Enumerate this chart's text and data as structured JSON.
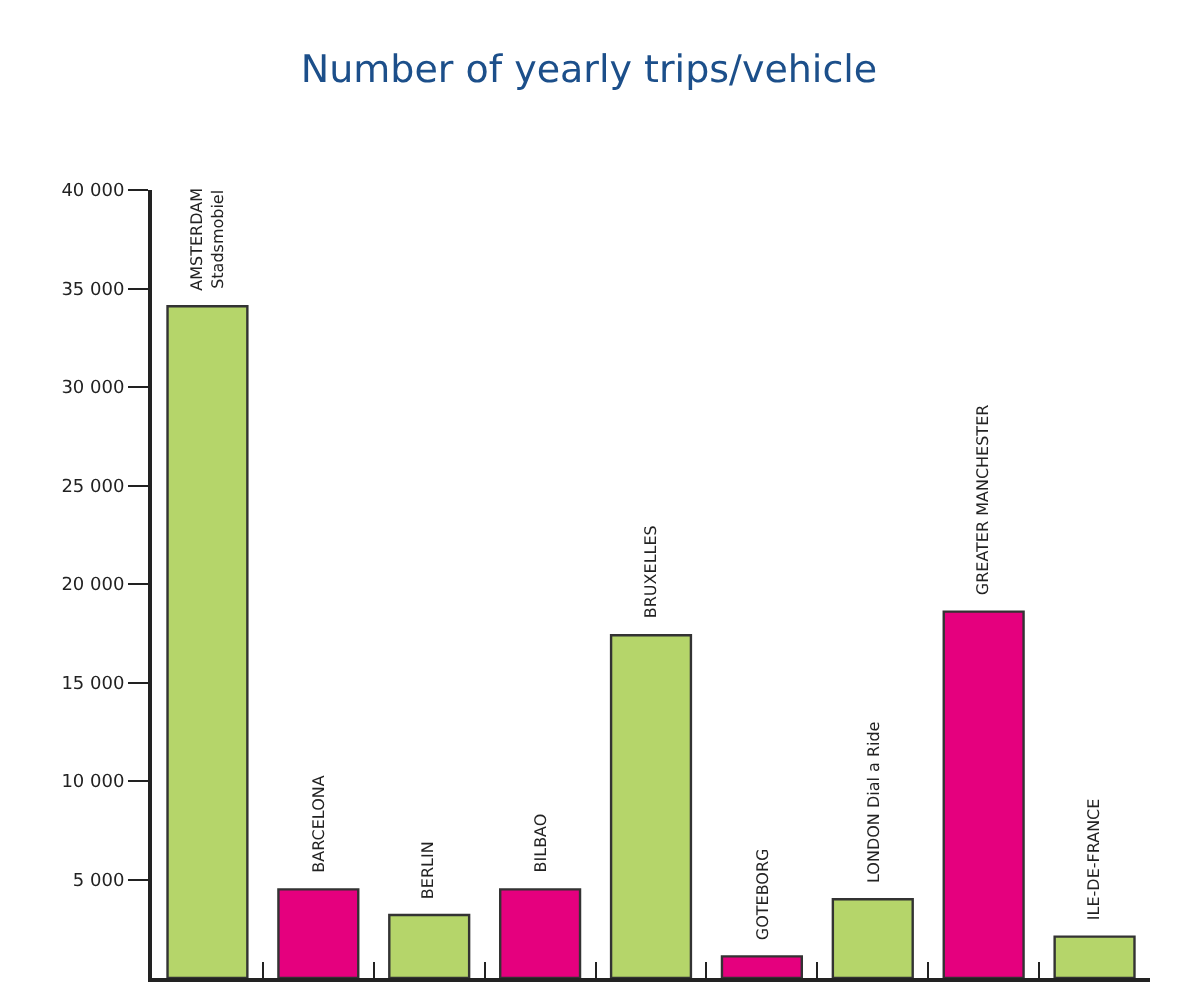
{
  "chart_data": {
    "type": "bar",
    "title": "Number of yearly trips/vehicle",
    "categories": [
      "AMSTERDAM\nStadsmobiel",
      "BARCELONA",
      "BERLIN",
      "BILBAO",
      "BRUXELLES",
      "GOTEBORG",
      "LONDON Dial a Ride",
      "GREATER MANCHESTER",
      "ILE-DE-FRANCE"
    ],
    "values": [
      34100,
      4500,
      3200,
      4500,
      17400,
      1100,
      4000,
      18600,
      2100
    ],
    "colors": [
      "#b5d56a",
      "#e5007e",
      "#b5d56a",
      "#e5007e",
      "#b5d56a",
      "#e5007e",
      "#b5d56a",
      "#e5007e",
      "#b5d56a"
    ],
    "ylim": [
      0,
      40000
    ],
    "yticks": [
      {
        "value": 5000,
        "label": "5 000"
      },
      {
        "value": 10000,
        "label": "10 000"
      },
      {
        "value": 15000,
        "label": "15 000"
      },
      {
        "value": 20000,
        "label": "20 000"
      },
      {
        "value": 25000,
        "label": "25 000"
      },
      {
        "value": 30000,
        "label": "30 000"
      },
      {
        "value": 35000,
        "label": "35 000"
      },
      {
        "value": 40000,
        "label": "40 000"
      }
    ],
    "legend": false
  }
}
